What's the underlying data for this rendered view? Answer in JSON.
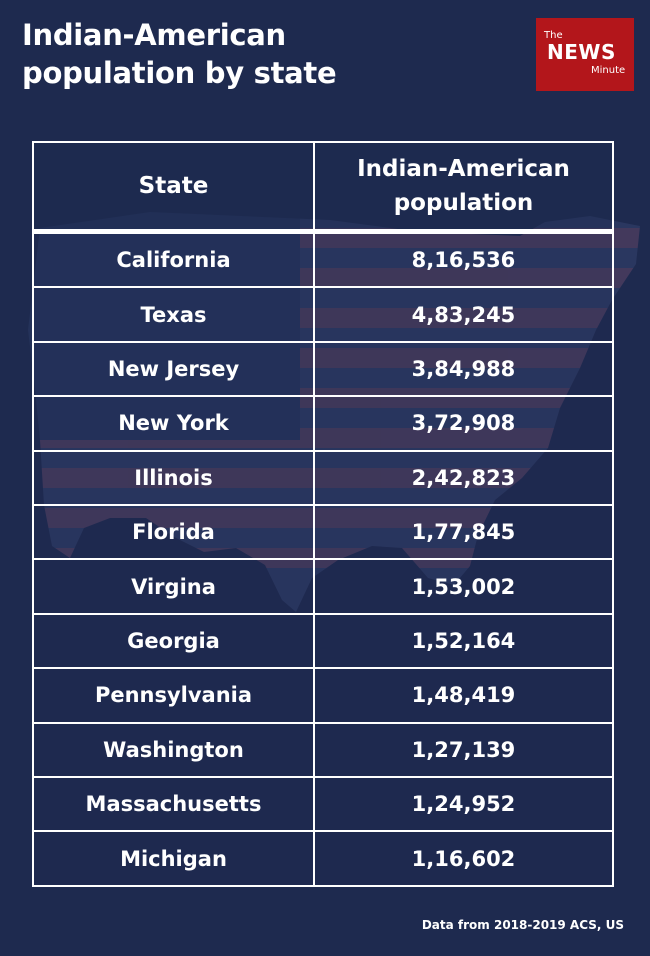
{
  "title_line1": "Indian-American",
  "title_line2": "population by state",
  "logo": {
    "the": "The",
    "news": "NEWS",
    "minute": "Minute"
  },
  "chart_data": {
    "type": "table",
    "columns": [
      "State",
      "Indian-American population"
    ],
    "rows": [
      [
        "California",
        "8,16,536"
      ],
      [
        "Texas",
        "4,83,245"
      ],
      [
        "New Jersey",
        "3,84,988"
      ],
      [
        "New York",
        "3,72,908"
      ],
      [
        "Illinois",
        "2,42,823"
      ],
      [
        "Florida",
        "1,77,845"
      ],
      [
        "Virgina",
        "1,53,002"
      ],
      [
        "Georgia",
        "1,52,164"
      ],
      [
        "Pennsylvania",
        "1,48,419"
      ],
      [
        "Washington",
        "1,27,139"
      ],
      [
        "Massachusetts",
        "1,24,952"
      ],
      [
        "Michigan",
        "1,16,602"
      ]
    ]
  },
  "source": "Data from 2018-2019 ACS, US",
  "colors": {
    "background": "#1e2a4f",
    "logo": "#b3161b",
    "text": "#ffffff"
  },
  "decoration": "us-flag-map-silhouette"
}
